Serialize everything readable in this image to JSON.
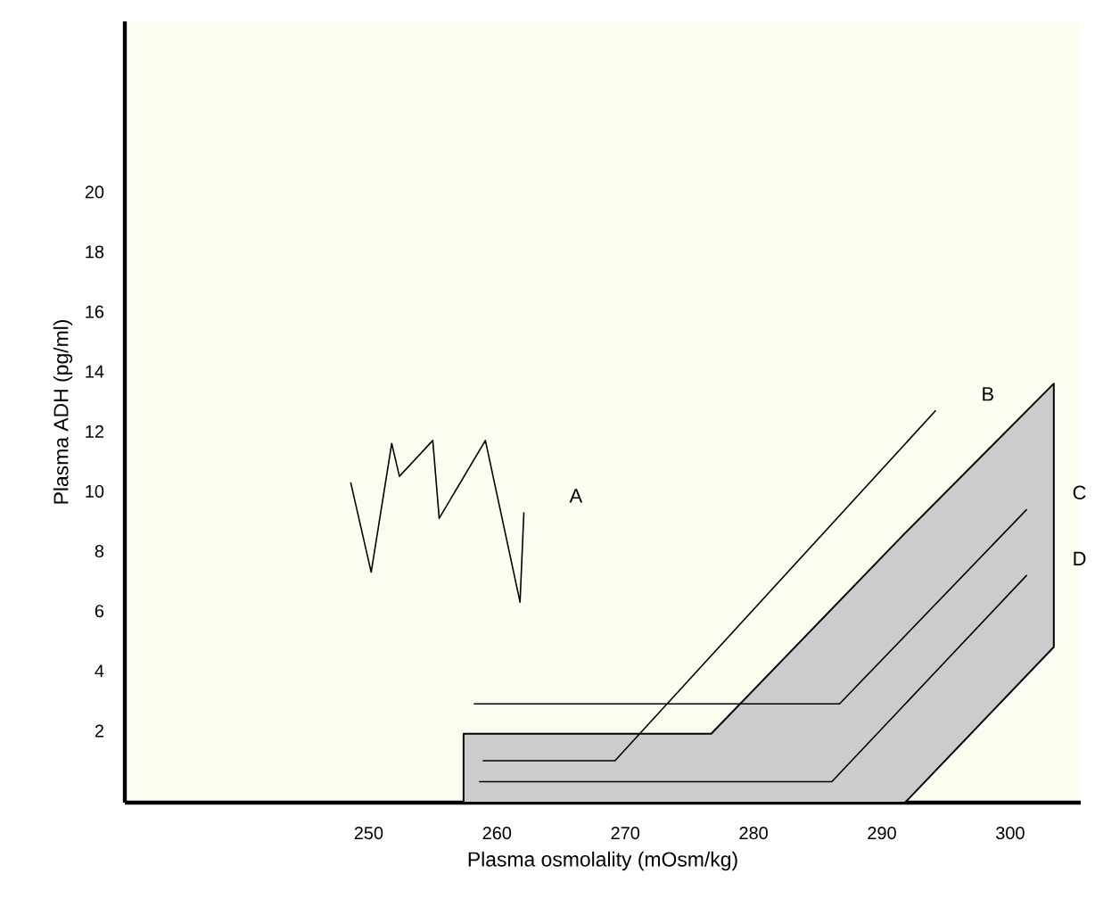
{
  "chart_data": {
    "type": "line",
    "xlabel": "Plasma osmolality (mOsm/kg)",
    "ylabel": "Plasma ADH (pg/ml)",
    "xlim": [
      231,
      305.5
    ],
    "ylim": [
      -0.4,
      25.7
    ],
    "xticks": [
      250,
      260,
      270,
      280,
      290,
      300
    ],
    "yticks": [
      2,
      4,
      6,
      8,
      10,
      12,
      14,
      16,
      18,
      20
    ],
    "grid": false,
    "marker": "none",
    "line_style": "solid",
    "series": [
      {
        "type": "area",
        "color": "#cccccc",
        "x": [
          257.4,
          276.7,
          291.8,
          303.4
        ],
        "values": [
          null,
          null,
          null,
          null
        ],
        "lower": [
          -0.4,
          -0.4,
          -0.4,
          4.8
        ],
        "upper": [
          1.9,
          1.9,
          8.6,
          13.6
        ]
      },
      {
        "name": "A",
        "color": "#000000",
        "x": [
          248.6,
          250.2,
          251.8,
          252.4,
          255.0,
          255.5,
          259.1,
          261.8,
          262.1
        ],
        "values": [
          10.3,
          7.3,
          11.6,
          10.5,
          11.7,
          9.1,
          11.7,
          6.3,
          9.3
        ]
      },
      {
        "name": "B",
        "color": "#000000",
        "x": [
          258.9,
          269.2,
          294.2
        ],
        "values": [
          1.0,
          1.0,
          12.7
        ]
      },
      {
        "name": "C",
        "color": "#000000",
        "x": [
          258.2,
          286.7,
          301.3
        ],
        "values": [
          2.9,
          2.9,
          9.4
        ]
      },
      {
        "name": "D",
        "color": "#000000",
        "x": [
          258.6,
          286.1,
          301.3
        ],
        "values": [
          0.3,
          0.3,
          7.2
        ]
      }
    ]
  }
}
